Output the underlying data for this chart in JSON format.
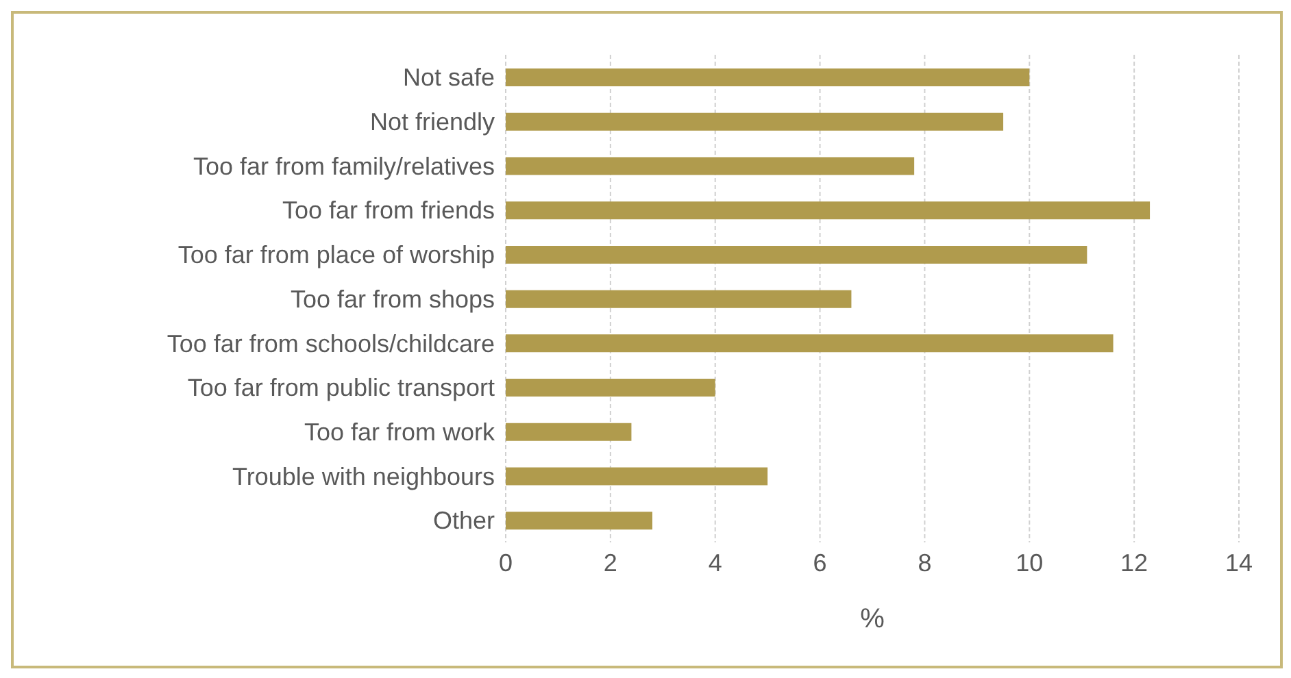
{
  "chart_data": {
    "type": "bar",
    "orientation": "horizontal",
    "xlabel": "%",
    "categories": [
      "Not safe",
      "Not friendly",
      "Too far from family/relatives",
      "Too far from friends",
      "Too far from place of worship",
      "Too far from shops",
      "Too far from schools/childcare",
      "Too far from public transport",
      "Too far from work",
      "Trouble with neighbours",
      "Other"
    ],
    "values": [
      10.0,
      9.5,
      7.8,
      12.3,
      11.1,
      6.6,
      11.6,
      4.0,
      2.4,
      5.0,
      2.8
    ],
    "color": "#b09b4d",
    "xlim": [
      0,
      14
    ],
    "xticks": [
      0,
      2,
      4,
      6,
      8,
      10,
      12,
      14
    ],
    "grid": "x",
    "legend": false
  }
}
